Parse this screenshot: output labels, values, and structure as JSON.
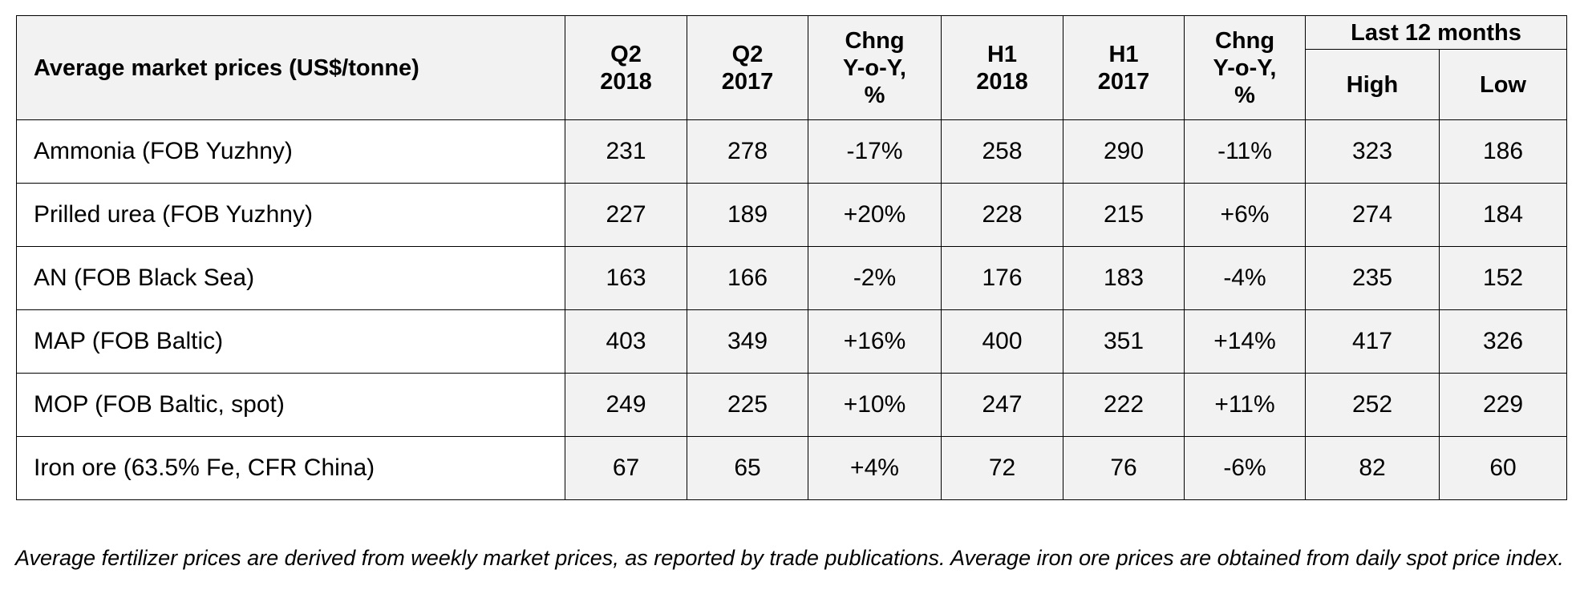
{
  "table": {
    "title": "Average market prices (US$/tonne)",
    "headers": {
      "q2_2018": "Q2\n2018",
      "q2_2017": "Q2\n2017",
      "chng_q": "Chng\nY-o-Y,\n%",
      "h1_2018": "H1\n2018",
      "h1_2017": "H1\n2017",
      "chng_h": "Chng\nY-o-Y,\n%",
      "last12": "Last 12 months",
      "high": "High",
      "low": "Low"
    },
    "rows": [
      {
        "label": "Ammonia (FOB Yuzhny)",
        "q2_2018": "231",
        "q2_2017": "278",
        "chng_q": "-17%",
        "h1_2018": "258",
        "h1_2017": "290",
        "chng_h": "-11%",
        "high": "323",
        "low": "186"
      },
      {
        "label": "Prilled urea (FOB Yuzhny)",
        "q2_2018": "227",
        "q2_2017": "189",
        "chng_q": "+20%",
        "h1_2018": "228",
        "h1_2017": "215",
        "chng_h": "+6%",
        "high": "274",
        "low": "184"
      },
      {
        "label": "AN (FOB Black Sea)",
        "q2_2018": "163",
        "q2_2017": "166",
        "chng_q": "-2%",
        "h1_2018": "176",
        "h1_2017": "183",
        "chng_h": "-4%",
        "high": "235",
        "low": "152"
      },
      {
        "label": "MAP (FOB Baltic)",
        "q2_2018": "403",
        "q2_2017": "349",
        "chng_q": "+16%",
        "h1_2018": "400",
        "h1_2017": "351",
        "chng_h": "+14%",
        "high": "417",
        "low": "326"
      },
      {
        "label": "MOP (FOB Baltic, spot)",
        "q2_2018": "249",
        "q2_2017": "225",
        "chng_q": "+10%",
        "h1_2018": "247",
        "h1_2017": "222",
        "chng_h": "+11%",
        "high": "252",
        "low": "229"
      },
      {
        "label": "Iron ore (63.5% Fe, CFR China)",
        "q2_2018": "67",
        "q2_2017": "65",
        "chng_q": "+4%",
        "h1_2018": "72",
        "h1_2017": "76",
        "chng_h": "-6%",
        "high": "82",
        "low": "60"
      }
    ]
  },
  "footnote": "Average fertilizer prices are derived from weekly market prices, as reported by trade publications. Average iron ore prices are obtained from daily spot price index."
}
